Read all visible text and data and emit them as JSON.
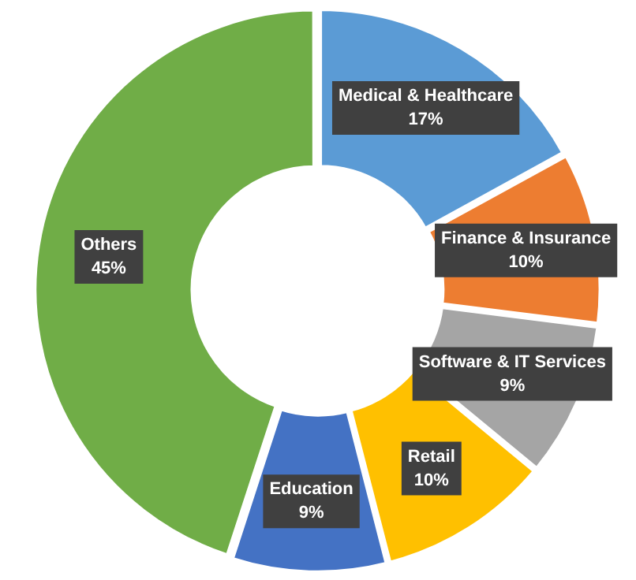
{
  "chart_data": {
    "type": "donut",
    "categories": [
      "Medical & Healthcare",
      "Finance & Insurance",
      "Software & IT Services",
      "Retail",
      "Education",
      "Others"
    ],
    "values": [
      17,
      10,
      9,
      10,
      9,
      45
    ],
    "value_labels": [
      "17%",
      "10%",
      "9%",
      "10%",
      "9%",
      "45%"
    ],
    "colors": [
      "#5b9bd5",
      "#ed7d31",
      "#a5a5a5",
      "#ffc000",
      "#4472c4",
      "#70ad47"
    ],
    "legend": false
  }
}
